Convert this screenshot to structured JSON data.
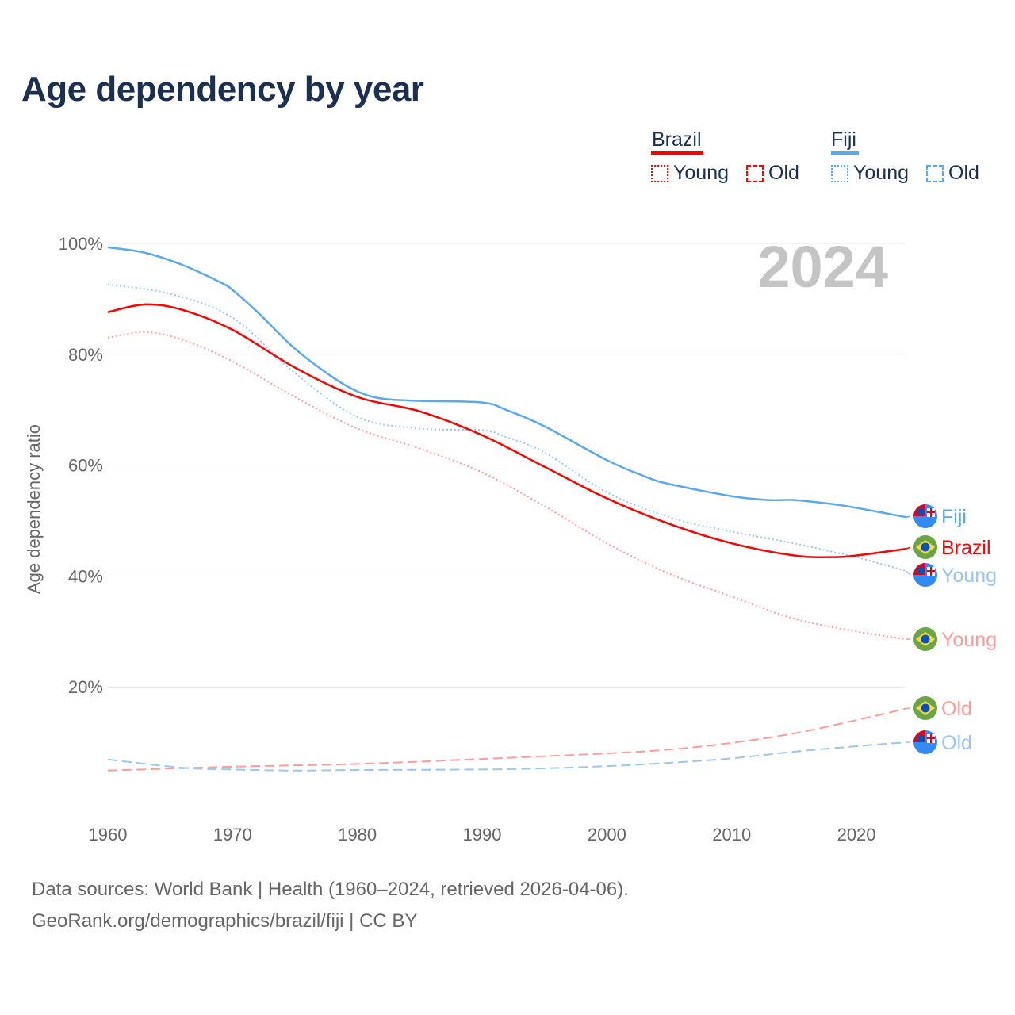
{
  "title": "Age dependency by year",
  "legend": {
    "countries": [
      {
        "name": "Brazil",
        "color": "#ff0000",
        "young": "Young",
        "old": "Old"
      },
      {
        "name": "Fiji",
        "color": "#5ca8ed",
        "young": "Young",
        "old": "Old"
      }
    ]
  },
  "year_watermark": "2024",
  "footer": {
    "line1": "Data sources: World Bank | Health (1960–2024, retrieved 2026-04-06).",
    "line2": "GeoRank.org/demographics/brazil/fiji | CC BY"
  },
  "chart_data": {
    "type": "line",
    "title": "Age dependency by year",
    "xlabel": "",
    "ylabel": "Age dependency ratio",
    "xlim": [
      1960,
      2024
    ],
    "ylim": [
      0,
      100
    ],
    "xticks": [
      "1960",
      "1970",
      "1980",
      "1990",
      "2000",
      "2010",
      "2020"
    ],
    "yticks": [
      "20%",
      "40%",
      "60%",
      "80%",
      "100%"
    ],
    "grid": true,
    "legend_position": "top-right",
    "series": [
      {
        "name": "Fiji",
        "label": "Fiji",
        "style": "solid",
        "color": "#5ca8ed",
        "flag": "fiji",
        "x": [
          1960,
          1963,
          1966,
          1969,
          1970,
          1972,
          1975,
          1978,
          1980,
          1982,
          1985,
          1990,
          1992,
          1995,
          2000,
          2003,
          2005,
          2010,
          2013,
          2015,
          2018,
          2020,
          2024
        ],
        "y": [
          99.3,
          98.3,
          96.1,
          93,
          91.6,
          87.6,
          81,
          75.9,
          73.3,
          72,
          71.6,
          71.3,
          69.9,
          67,
          60.9,
          58,
          56.6,
          54.4,
          53.7,
          53.7,
          53,
          52.3,
          50.6
        ]
      },
      {
        "name": "Fiji Young",
        "label": "Young",
        "style": "dotted",
        "color": "#9cc6f0",
        "flag": "fiji",
        "x": [
          1960,
          1965,
          1970,
          1975,
          1980,
          1985,
          1990,
          1992,
          1995,
          2000,
          2005,
          2010,
          2015,
          2018,
          2020,
          2024
        ],
        "y": [
          92.6,
          90.9,
          86.6,
          76.6,
          68.7,
          66.6,
          66.3,
          65,
          62.3,
          55.1,
          50.6,
          48,
          45.9,
          44.4,
          43.4,
          40.9
        ]
      },
      {
        "name": "Brazil",
        "label": "Brazil",
        "style": "solid",
        "color": "#ff0000",
        "flag": "brazil",
        "x": [
          1960,
          1963,
          1966,
          1970,
          1975,
          1980,
          1985,
          1990,
          1995,
          2000,
          2005,
          2010,
          2015,
          2018,
          2020,
          2024
        ],
        "y": [
          87.6,
          89,
          88,
          84.4,
          77.6,
          72.3,
          69.7,
          65.4,
          59.7,
          54,
          49.4,
          45.9,
          43.7,
          43.4,
          43.7,
          44.9
        ]
      },
      {
        "name": "Brazil Young",
        "label": "Young",
        "style": "dotted",
        "color": "#ff9c9c",
        "flag": "brazil",
        "x": [
          1960,
          1963,
          1966,
          1970,
          1975,
          1980,
          1985,
          1990,
          1995,
          2000,
          2005,
          2010,
          2015,
          2020,
          2024
        ],
        "y": [
          83,
          84,
          82.6,
          78.7,
          72.3,
          66.6,
          63,
          58.7,
          52.6,
          45.9,
          40.4,
          36.3,
          32.3,
          30,
          28.6
        ]
      },
      {
        "name": "Brazil Old",
        "label": "Old",
        "style": "dashed",
        "color": "#ff9c9c",
        "flag": "brazil",
        "x": [
          1960,
          1970,
          1980,
          1990,
          2000,
          2005,
          2010,
          2015,
          2020,
          2024
        ],
        "y": [
          4.9,
          5.6,
          6.1,
          7,
          8,
          8.7,
          9.9,
          11.6,
          14,
          16.1
        ]
      },
      {
        "name": "Fiji Old",
        "label": "Old",
        "style": "dashed",
        "color": "#9cc6f0",
        "flag": "fiji",
        "x": [
          1960,
          1966,
          1970,
          1975,
          1980,
          1990,
          1995,
          2000,
          2005,
          2010,
          2015,
          2020,
          2024
        ],
        "y": [
          6.9,
          5.4,
          5.1,
          4.9,
          5,
          5.1,
          5.3,
          5.7,
          6.3,
          7.1,
          8.3,
          9.3,
          10
        ]
      }
    ]
  }
}
